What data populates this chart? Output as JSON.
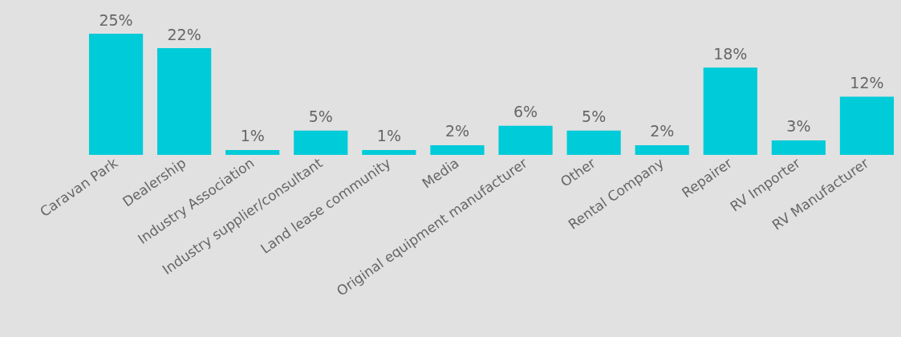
{
  "chart_data": {
    "type": "bar",
    "categories": [
      "Caravan Park",
      "Dealership",
      "Industry Association",
      "Industry supplier/consultant",
      "Land lease community",
      "Media",
      "Original equipment manufacturer",
      "Other",
      "Rental Company",
      "Repairer",
      "RV Importer",
      "RV Manufacturer"
    ],
    "values": [
      25,
      22,
      1,
      5,
      1,
      2,
      6,
      5,
      2,
      18,
      3,
      12
    ],
    "value_labels": [
      "25%",
      "22%",
      "1%",
      "5%",
      "1%",
      "2%",
      "6%",
      "5%",
      "2%",
      "18%",
      "3%",
      "12%"
    ],
    "color": "#00cbd9"
  }
}
